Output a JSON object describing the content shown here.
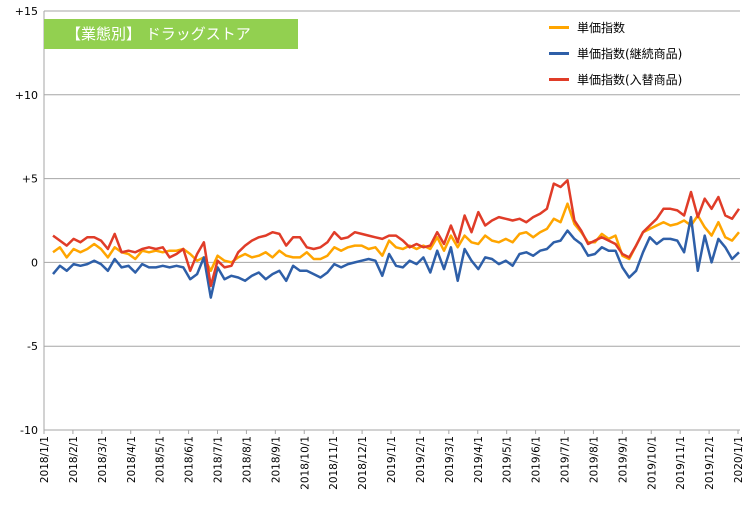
{
  "chart_data": {
    "type": "line",
    "title": "【業態別】 ドラッグストア",
    "ylim": [
      -10,
      15
    ],
    "y_ticks": [
      {
        "value": 15,
        "label": "+15"
      },
      {
        "value": 10,
        "label": "+10"
      },
      {
        "value": 5,
        "label": "+5"
      },
      {
        "value": 0,
        "label": "0"
      },
      {
        "value": -5,
        "label": "-5"
      },
      {
        "value": -10,
        "label": "-10"
      }
    ],
    "x_tick_labels": [
      "2018/1/1",
      "2018/2/1",
      "2018/3/1",
      "2018/4/1",
      "2018/5/1",
      "2018/6/1",
      "2018/7/1",
      "2018/8/1",
      "2018/9/1",
      "2018/10/1",
      "2018/11/1",
      "2018/12/1",
      "2019/1/1",
      "2019/2/1",
      "2019/3/1",
      "2019/4/1",
      "2019/5/1",
      "2019/6/1",
      "2019/7/1",
      "2019/8/1",
      "2019/9/1",
      "2019/10/1",
      "2019/11/1",
      "2019/12/1",
      "2020/1/1"
    ],
    "legend_position": "top-right",
    "grid": "horizontal",
    "series": [
      {
        "name": "単価指数",
        "color": "#ffa500",
        "values": [
          0.6,
          0.9,
          0.3,
          0.8,
          0.6,
          0.8,
          1.1,
          0.8,
          0.3,
          0.9,
          0.6,
          0.5,
          0.2,
          0.7,
          0.6,
          0.7,
          0.6,
          0.7,
          0.7,
          0.8,
          0.5,
          0.1,
          0.3,
          -0.5,
          0.4,
          0.1,
          0.0,
          0.3,
          0.5,
          0.3,
          0.4,
          0.6,
          0.3,
          0.7,
          0.4,
          0.3,
          0.3,
          0.6,
          0.2,
          0.2,
          0.4,
          0.9,
          0.7,
          0.9,
          1.0,
          1.0,
          0.8,
          0.9,
          0.4,
          1.3,
          0.9,
          0.8,
          1.0,
          0.8,
          1.0,
          0.8,
          1.5,
          0.7,
          1.6,
          0.9,
          1.6,
          1.2,
          1.1,
          1.6,
          1.3,
          1.2,
          1.4,
          1.2,
          1.7,
          1.8,
          1.5,
          1.8,
          2.0,
          2.6,
          2.4,
          3.5,
          2.3,
          1.8,
          1.2,
          1.2,
          1.7,
          1.4,
          1.6,
          0.4,
          0.2,
          1.0,
          1.8,
          2.0,
          2.2,
          2.4,
          2.2,
          2.3,
          2.5,
          2.2,
          2.8,
          2.1,
          1.6,
          2.4,
          1.5,
          1.3,
          1.8
        ]
      },
      {
        "name": "単価指数(継続商品)",
        "color": "#2e5fa8",
        "values": [
          -0.7,
          -0.2,
          -0.5,
          -0.1,
          -0.2,
          -0.1,
          0.1,
          -0.1,
          -0.5,
          0.2,
          -0.3,
          -0.2,
          -0.6,
          -0.1,
          -0.3,
          -0.3,
          -0.2,
          -0.3,
          -0.2,
          -0.3,
          -1.0,
          -0.7,
          0.3,
          -2.1,
          -0.3,
          -1.0,
          -0.8,
          -0.9,
          -1.1,
          -0.8,
          -0.6,
          -1.0,
          -0.7,
          -0.5,
          -1.1,
          -0.2,
          -0.5,
          -0.5,
          -0.7,
          -0.9,
          -0.6,
          -0.1,
          -0.3,
          -0.1,
          0.0,
          0.1,
          0.2,
          0.1,
          -0.8,
          0.5,
          -0.2,
          -0.3,
          0.1,
          -0.1,
          0.3,
          -0.6,
          0.7,
          -0.4,
          0.9,
          -1.1,
          0.8,
          0.1,
          -0.4,
          0.3,
          0.2,
          -0.1,
          0.1,
          -0.2,
          0.5,
          0.6,
          0.4,
          0.7,
          0.8,
          1.2,
          1.3,
          1.9,
          1.4,
          1.1,
          0.4,
          0.5,
          0.9,
          0.7,
          0.7,
          -0.3,
          -0.9,
          -0.5,
          0.6,
          1.5,
          1.1,
          1.4,
          1.4,
          1.3,
          0.6,
          2.7,
          -0.5,
          1.6,
          0.0,
          1.4,
          0.9,
          0.2,
          0.6
        ]
      },
      {
        "name": "単価指数(入替商品)",
        "color": "#e03c28",
        "values": [
          1.6,
          1.3,
          1.0,
          1.4,
          1.2,
          1.5,
          1.5,
          1.3,
          0.8,
          1.7,
          0.6,
          0.7,
          0.6,
          0.8,
          0.9,
          0.8,
          0.9,
          0.3,
          0.5,
          0.8,
          -0.5,
          0.5,
          1.2,
          -1.4,
          0.1,
          -0.3,
          -0.2,
          0.6,
          1.0,
          1.3,
          1.5,
          1.6,
          1.8,
          1.7,
          1.0,
          1.5,
          1.5,
          0.9,
          0.8,
          0.9,
          1.2,
          1.8,
          1.4,
          1.5,
          1.8,
          1.7,
          1.6,
          1.5,
          1.4,
          1.6,
          1.6,
          1.3,
          0.9,
          1.1,
          0.9,
          1.0,
          1.8,
          1.1,
          2.2,
          1.2,
          2.8,
          1.8,
          3.0,
          2.2,
          2.5,
          2.7,
          2.6,
          2.5,
          2.6,
          2.4,
          2.7,
          2.9,
          3.2,
          4.7,
          4.5,
          4.9,
          2.5,
          1.9,
          1.1,
          1.3,
          1.5,
          1.3,
          1.1,
          0.5,
          0.3,
          1.0,
          1.8,
          2.2,
          2.6,
          3.2,
          3.2,
          3.1,
          2.8,
          4.2,
          2.7,
          3.8,
          3.2,
          3.9,
          2.8,
          2.6,
          3.2
        ]
      }
    ]
  }
}
